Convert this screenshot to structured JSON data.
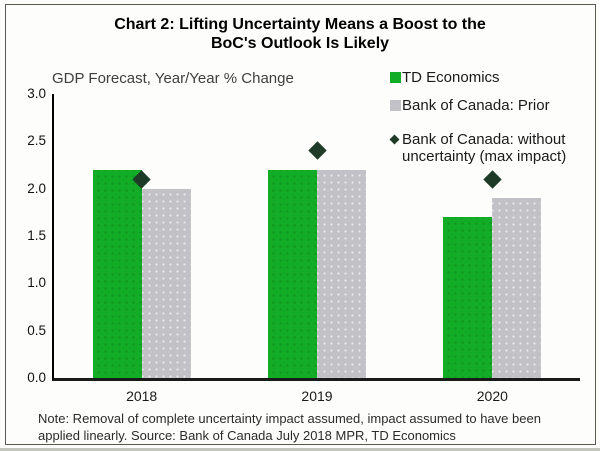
{
  "title": {
    "text": "Chart 2: Lifting Uncertainty Means a Boost to the BoC's Outlook Is Likely",
    "lines": [
      "Chart 2: Lifting Uncertainty Means a Boost to the",
      "BoC's Outlook Is Likely"
    ]
  },
  "axis_title": "GDP Forecast, Year/Year % Change",
  "legend": {
    "items": [
      {
        "label": "TD Economics",
        "marker": "square",
        "color": "#13AC27"
      },
      {
        "label": "Bank of Canada: Prior",
        "marker": "square",
        "color": "#C2C1C6"
      },
      {
        "label": "Bank of Canada: without uncertainty (max impact)",
        "marker": "diamond",
        "color": "#1E3B28"
      }
    ]
  },
  "note": {
    "text": "Note: Removal of complete uncertainty impact assumed, impact assumed to have been applied linearly. Source: Bank of Canada July 2018 MPR, TD Economics",
    "lines": [
      "Note: Removal of complete uncertainty impact assumed, impact assumed to have been",
      "applied linearly. Source: Bank of Canada July 2018 MPR, TD Economics"
    ]
  },
  "colors": {
    "td_green": "#13AC27",
    "boc_gray": "#C2C1C6",
    "diamond_dark_green": "#1E3B28",
    "axis_black": "#1a1a1a",
    "frame_border": "#585c50"
  },
  "chart_data": {
    "type": "bar",
    "title": "Chart 2: Lifting Uncertainty Means a Boost to the BoC's Outlook Is Likely",
    "ylabel": "GDP Forecast, Year/Year % Change",
    "xlabel": "",
    "categories": [
      "2018",
      "2019",
      "2020"
    ],
    "series": [
      {
        "name": "TD Economics",
        "type": "bar",
        "color": "#13AC27",
        "values": [
          2.2,
          2.2,
          1.7
        ]
      },
      {
        "name": "Bank of Canada: Prior",
        "type": "bar",
        "color": "#C2C1C6",
        "values": [
          2.0,
          2.2,
          1.9
        ]
      },
      {
        "name": "Bank of Canada: without uncertainty (max impact)",
        "type": "scatter",
        "marker": "diamond",
        "color": "#1E3B28",
        "values": [
          2.1,
          2.4,
          2.1
        ]
      }
    ],
    "ylim": [
      0.0,
      3.0
    ],
    "ytick_step": 0.5,
    "yticks": [
      "0.0",
      "0.5",
      "1.0",
      "1.5",
      "2.0",
      "2.5",
      "3.0"
    ],
    "grid": false,
    "legend_position": "top-right"
  }
}
